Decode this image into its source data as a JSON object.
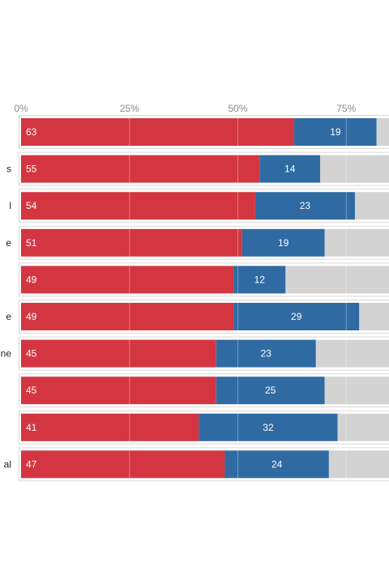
{
  "colors": {
    "red": "#d33641",
    "blue": "#2f6aa3",
    "gray": "#d3d3d3",
    "grid": "#e6e6e6",
    "row_border": "#d8d8d8"
  },
  "chart_data": {
    "type": "bar",
    "orientation": "horizontal",
    "stacked": true,
    "xlim": [
      0,
      100
    ],
    "x_ticks": [
      "0%",
      "25%",
      "50%",
      "75%"
    ],
    "grid": true,
    "row_labels": [
      "",
      "s",
      "l",
      "e",
      "",
      "e",
      "ne",
      "",
      "",
      "al"
    ],
    "series": [
      {
        "color": "#d33641",
        "values": [
          63,
          55,
          54,
          51,
          49,
          49,
          45,
          45,
          41,
          47
        ]
      },
      {
        "color": "#2f6aa3",
        "values": [
          19,
          14,
          23,
          19,
          12,
          29,
          23,
          25,
          32,
          24
        ]
      },
      {
        "color": "#d3d3d3",
        "values": [
          18,
          31,
          23,
          30,
          39,
          22,
          32,
          30,
          27,
          29
        ]
      }
    ]
  }
}
